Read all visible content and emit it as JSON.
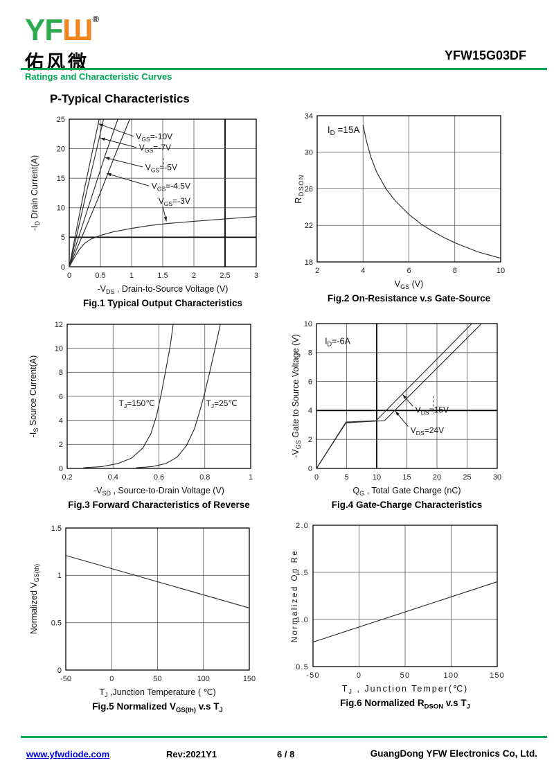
{
  "header": {
    "logo": {
      "yf": "YF",
      "sha": "Ш",
      "registered": "®",
      "chinese": "佑风微"
    },
    "part_number": "YFW15G03DF",
    "section_label": "Ratings and Characteristic Curves"
  },
  "page_title": "P-Typical Characteristics",
  "theme": {
    "green": "#00a651",
    "orange": "#f0841d",
    "link_blue": "#0000dd",
    "text": "#111111"
  },
  "footer": {
    "website": "www.yfwdiode.com",
    "revision": "Rev:2021Y1",
    "page_number": "6 / 8",
    "company": "GuangDong YFW Electronics Co, Ltd."
  },
  "chart_data": [
    {
      "type": "line",
      "caption": "Fig.1 Typical Output Characteristics",
      "xlabel": "-V~DS~ , Drain-to-Source Voltage (V)",
      "ylabel": "-I~D~ Drain Current(A)",
      "xlim": [
        0,
        3
      ],
      "ylim": [
        0,
        25
      ],
      "grid": true,
      "legend_position": "none",
      "xticks": [
        [
          0,
          "0"
        ],
        [
          0.5,
          "0.5"
        ],
        [
          1,
          "1"
        ],
        [
          1.5,
          "1.5"
        ],
        [
          2,
          "2"
        ],
        [
          2.5,
          "2.5"
        ],
        [
          3,
          "3"
        ]
      ],
      "yticks": [
        [
          0,
          "0"
        ],
        [
          5,
          "5"
        ],
        [
          10,
          "10"
        ],
        [
          15,
          "15"
        ],
        [
          20,
          "20"
        ],
        [
          25,
          "25"
        ]
      ],
      "bold_x": [
        2.5
      ],
      "bold_y": [
        5
      ],
      "series": [
        {
          "name": "VGS=-10V",
          "points": [
            [
              0,
              0
            ],
            [
              0.12,
              6.5
            ],
            [
              0.25,
              13.5
            ],
            [
              0.37,
              19.5
            ],
            [
              0.48,
              25
            ]
          ]
        },
        {
          "name": "VGS=-7V",
          "points": [
            [
              0,
              0
            ],
            [
              0.14,
              6.2
            ],
            [
              0.28,
              12.8
            ],
            [
              0.42,
              19
            ],
            [
              0.55,
              25
            ]
          ]
        },
        {
          "name": "VGS=-5V",
          "points": [
            [
              0,
              0
            ],
            [
              0.18,
              6
            ],
            [
              0.38,
              12.5
            ],
            [
              0.58,
              19
            ],
            [
              0.78,
              25
            ]
          ]
        },
        {
          "name": "VGS=-4.5V",
          "points": [
            [
              0,
              0
            ],
            [
              0.22,
              5.5
            ],
            [
              0.46,
              11.5
            ],
            [
              0.72,
              18.5
            ],
            [
              0.97,
              25
            ]
          ]
        },
        {
          "name": "VGS=-3V",
          "points": [
            [
              0,
              0
            ],
            [
              0.08,
              1.5
            ],
            [
              0.16,
              2.9
            ],
            [
              0.25,
              4.0
            ],
            [
              0.35,
              4.7
            ],
            [
              0.5,
              5.3
            ],
            [
              0.7,
              5.9
            ],
            [
              1.0,
              6.5
            ],
            [
              1.3,
              7.0
            ],
            [
              1.6,
              7.35
            ],
            [
              2.0,
              7.7
            ],
            [
              2.5,
              8.1
            ],
            [
              3.0,
              8.5
            ]
          ]
        }
      ],
      "labels": [
        {
          "text": "V~GS~=-10V",
          "x": 1.07,
          "y": 21.6,
          "arrow": [
            1.03,
            22.1,
            0.47,
            24.2
          ]
        },
        {
          "text": "V~GS~=-7V",
          "x": 1.12,
          "y": 19.7,
          "arrow": [
            1.08,
            20.2,
            0.5,
            21.8
          ]
        },
        {
          "text": "V~GS~=-5V",
          "x": 1.22,
          "y": 16.4,
          "arrow": [
            1.18,
            16.9,
            0.575,
            18.5
          ]
        },
        {
          "text": "V~GS~=-4.5V",
          "x": 1.32,
          "y": 13.2,
          "arrow": [
            1.28,
            13.7,
            0.6,
            15.8
          ]
        },
        {
          "text": "V~GS~=-3V",
          "x": 1.43,
          "y": 10.7,
          "arrow": [
            1.5,
            10.2,
            1.56,
            7.7
          ]
        }
      ],
      "dashes": [
        [
          1.51,
          18.4,
          1.51,
          17.2
        ]
      ],
      "annotations": []
    },
    {
      "type": "line",
      "caption": "Fig.2 On-Resistance v.s Gate-Source",
      "xlabel": "V~GS~ (V)",
      "ylabel": "R~DSON~",
      "xlim": [
        2,
        10
      ],
      "ylim": [
        18,
        34
      ],
      "grid": true,
      "legend_position": "none",
      "xticks": [
        [
          2,
          "2"
        ],
        [
          4,
          "4"
        ],
        [
          6,
          "6"
        ],
        [
          8,
          "8"
        ],
        [
          10,
          "10"
        ]
      ],
      "yticks": [
        [
          18,
          "18"
        ],
        [
          22,
          "22"
        ],
        [
          26,
          "26"
        ],
        [
          30,
          "30"
        ],
        [
          34,
          "34"
        ]
      ],
      "series": [
        {
          "name": "RDSON at ID=15A",
          "points": [
            [
              4,
              33
            ],
            [
              4.15,
              31.2
            ],
            [
              4.35,
              29.4
            ],
            [
              4.6,
              27.8
            ],
            [
              5,
              26
            ],
            [
              5.4,
              24.7
            ],
            [
              6,
              23.2
            ],
            [
              6.5,
              22.2
            ],
            [
              7,
              21.4
            ],
            [
              7.5,
              20.7
            ],
            [
              8,
              20.1
            ],
            [
              8.5,
              19.6
            ],
            [
              9,
              19.1
            ],
            [
              9.5,
              18.75
            ],
            [
              10,
              18.4
            ]
          ]
        }
      ],
      "labels": [],
      "annotations": [
        {
          "text": "I~D~ =15A",
          "x": 2.45,
          "y": 32.1,
          "fs": 13.5
        }
      ]
    },
    {
      "type": "line",
      "caption": "Fig.3 Forward Characteristics of Reverse",
      "xlabel": "-V~SD~ , Source-to-Drain Voltage (V)",
      "ylabel": "-I~S~ Source Current(A)",
      "xlim": [
        0.2,
        1
      ],
      "ylim": [
        0,
        12
      ],
      "grid": true,
      "legend_position": "none",
      "xticks": [
        [
          0.2,
          "0.2"
        ],
        [
          0.4,
          "0.4"
        ],
        [
          0.6,
          "0.6"
        ],
        [
          0.8,
          "0.8"
        ],
        [
          1,
          "1"
        ]
      ],
      "yticks": [
        [
          0,
          "0"
        ],
        [
          2,
          "2"
        ],
        [
          4,
          "4"
        ],
        [
          6,
          "6"
        ],
        [
          8,
          "8"
        ],
        [
          10,
          "10"
        ],
        [
          12,
          "12"
        ]
      ],
      "series": [
        {
          "name": "TJ=150°C",
          "points": [
            [
              0.27,
              0.05
            ],
            [
              0.35,
              0.15
            ],
            [
              0.42,
              0.4
            ],
            [
              0.48,
              0.85
            ],
            [
              0.53,
              1.7
            ],
            [
              0.565,
              2.9
            ],
            [
              0.59,
              4.4
            ],
            [
              0.61,
              6.2
            ],
            [
              0.63,
              8.2
            ],
            [
              0.65,
              10.3
            ],
            [
              0.662,
              12
            ]
          ]
        },
        {
          "name": "TJ=25°C",
          "points": [
            [
              0.5,
              0.05
            ],
            [
              0.57,
              0.15
            ],
            [
              0.63,
              0.4
            ],
            [
              0.68,
              0.95
            ],
            [
              0.72,
              1.9
            ],
            [
              0.755,
              3.3
            ],
            [
              0.78,
              4.9
            ],
            [
              0.8,
              6.3
            ],
            [
              0.82,
              7.9
            ],
            [
              0.845,
              10
            ],
            [
              0.862,
              11.5
            ],
            [
              0.868,
              12
            ]
          ]
        }
      ],
      "labels": [
        {
          "text": "T~J~=150℃",
          "x": 0.425,
          "y": 5.2
        },
        {
          "text": "T~J~=25℃",
          "x": 0.805,
          "y": 5.2
        }
      ],
      "annotations": []
    },
    {
      "type": "line",
      "caption": "Fig.4 Gate-Charge Characteristics",
      "xlabel": "Q~G~ , Total Gate Charge (nC)",
      "ylabel": "-V~GS~  Gate to Source Voltage (V)",
      "xlim": [
        0,
        30
      ],
      "ylim": [
        0,
        10
      ],
      "grid": true,
      "legend_position": "none",
      "xticks": [
        [
          0,
          "0"
        ],
        [
          5,
          "5"
        ],
        [
          10,
          "10"
        ],
        [
          15,
          "15"
        ],
        [
          20,
          "20"
        ],
        [
          25,
          "25"
        ],
        [
          30,
          "30"
        ]
      ],
      "yticks": [
        [
          0,
          "0"
        ],
        [
          2,
          "2"
        ],
        [
          4,
          "4"
        ],
        [
          6,
          "6"
        ],
        [
          8,
          "8"
        ],
        [
          10,
          "10"
        ]
      ],
      "bold_x": [
        10
      ],
      "bold_y": [
        4
      ],
      "series": [
        {
          "name": "VDS=15V",
          "points": [
            [
              0,
              0
            ],
            [
              4.9,
              3.2
            ],
            [
              9.9,
              3.3
            ],
            [
              25.8,
              10
            ]
          ]
        },
        {
          "name": "VDS=24V",
          "points": [
            [
              0,
              0
            ],
            [
              4.9,
              3.15
            ],
            [
              11.3,
              3.3
            ],
            [
              27.4,
              10
            ]
          ]
        }
      ],
      "labels": [
        {
          "text": "V~DS~=15V",
          "x": 16.4,
          "y": 3.85,
          "arrow": [
            16.0,
            4.3,
            14.3,
            5.1
          ]
        },
        {
          "text": "V~DS~=24V",
          "x": 15.6,
          "y": 2.45,
          "arrow": [
            15.2,
            2.9,
            13.1,
            3.95
          ]
        }
      ],
      "dashes": [
        [
          19.4,
          5.0,
          19.4,
          3.8
        ]
      ],
      "annotations": [
        {
          "text": "I~D~=-6A",
          "x": 1.4,
          "y": 8.6,
          "fs": 12.5
        }
      ]
    },
    {
      "type": "line",
      "caption": "Fig.5 Normalized V~GS(th)~ v.s T~J~",
      "xlabel": "T~J~ ,Junction Temperature ( ℃)",
      "ylabel": "Normalized  V~GS(th)~",
      "xlim": [
        -50,
        150
      ],
      "ylim": [
        0,
        1.5
      ],
      "grid": true,
      "legend_position": "none",
      "xticks": [
        [
          -50,
          "-50"
        ],
        [
          0,
          "0"
        ],
        [
          50,
          "50"
        ],
        [
          100,
          "100"
        ],
        [
          150,
          "150"
        ]
      ],
      "yticks": [
        [
          0,
          "0"
        ],
        [
          0.5,
          "0.5"
        ],
        [
          1,
          "1"
        ],
        [
          1.5,
          "1.5"
        ]
      ],
      "series": [
        {
          "name": "Normalized VGS(th)",
          "points": [
            [
              -50,
              1.21
            ],
            [
              150,
              0.655
            ]
          ]
        }
      ],
      "labels": [],
      "annotations": []
    },
    {
      "type": "line",
      "caption": "Fig.6 Normalized R~DSON~ v.s T~J~",
      "xlabel": "T~J~ ,  Junction Temper(℃)",
      "ylabel": "Normalized On Re",
      "xlim": [
        -50,
        150
      ],
      "ylim": [
        0.5,
        2
      ],
      "grid": true,
      "legend_position": "none",
      "xticks": [
        [
          -50,
          "-50"
        ],
        [
          0,
          "0"
        ],
        [
          50,
          "50"
        ],
        [
          100,
          "100"
        ],
        [
          150,
          "150"
        ]
      ],
      "yticks": [
        [
          0.5,
          "0.5"
        ],
        [
          1,
          "1.0"
        ],
        [
          1.5,
          "1.5"
        ],
        [
          2,
          "2.0"
        ]
      ],
      "series": [
        {
          "name": "Normalized RDSON",
          "points": [
            [
              -50,
              0.76
            ],
            [
              150,
              1.4
            ]
          ]
        }
      ],
      "labels": [],
      "annotations": []
    }
  ]
}
